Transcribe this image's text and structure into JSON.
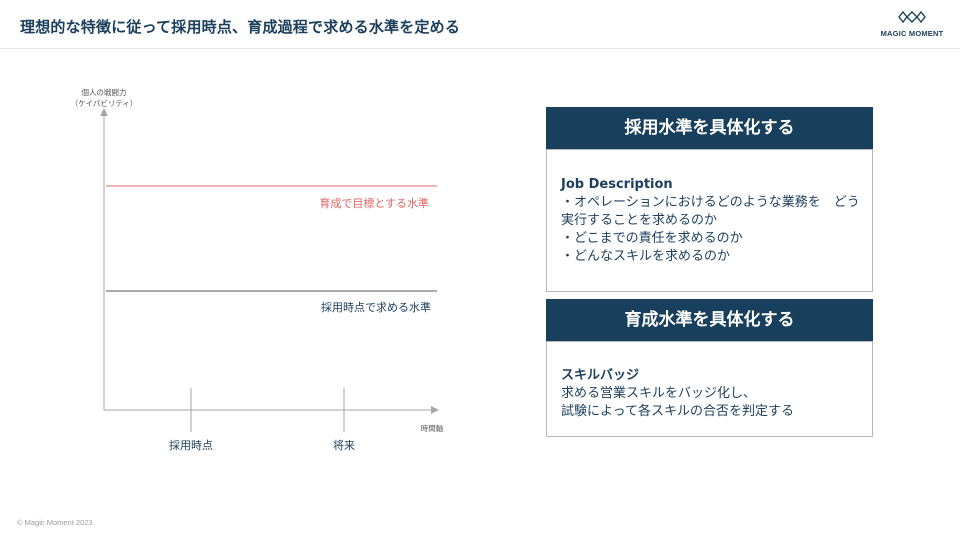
{
  "page": {
    "title": "理想的な特徴に従って採用時点、育成過程で求める水準を定める",
    "footer": "© Magic Moment 2023"
  },
  "logo": {
    "text": "MAGIC MOMENT"
  },
  "diagram": {
    "y_axis_label_line1": "個人の戦闘力",
    "y_axis_label_line2": "（ケイパビリティ）",
    "x_axis_label": "時間軸",
    "target_line_label": "育成で目標とする水準",
    "hiring_line_label": "採用時点で求める水準",
    "tick_hiring": "採用時点",
    "tick_future": "将来",
    "colors": {
      "target_line": "#e06666",
      "hiring_line": "#1b3f5c",
      "axis": "#a6a6a6"
    }
  },
  "hiring_box": {
    "header": "採用水準を具体化する",
    "heading": "Job Description",
    "lines": [
      "・オペレーションにおけるどのような業務を　どう",
      "実行することを求めるのか",
      "・どこまでの責任を求めるのか",
      "・どんなスキルを求めるのか"
    ]
  },
  "training_box": {
    "header": "育成水準を具体化する",
    "heading": "スキルバッジ",
    "lines": [
      "求める営業スキルをバッジ化し、",
      "試験によって各スキルの合否を判定する"
    ]
  }
}
